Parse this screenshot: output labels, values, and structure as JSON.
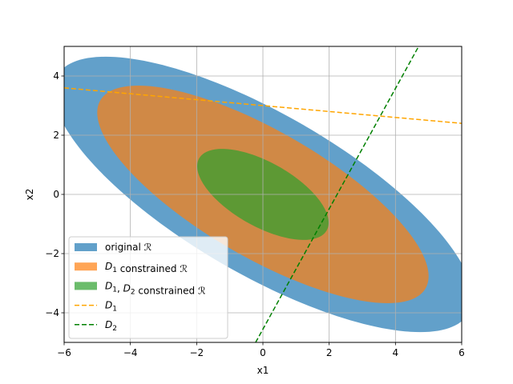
{
  "chart_data": {
    "type": "region-plot",
    "xlabel": "x1",
    "ylabel": "x2",
    "xlim": [
      -6,
      6
    ],
    "ylim": [
      -5,
      5
    ],
    "xticks": [
      -6,
      -4,
      -2,
      0,
      2,
      4,
      6
    ],
    "yticks": [
      -4,
      -2,
      0,
      2,
      4
    ],
    "xtick_labels": [
      "−6",
      "−4",
      "−2",
      "0",
      "2",
      "4",
      "6"
    ],
    "ytick_labels": [
      "−4",
      "−2",
      "0",
      "2",
      "4"
    ],
    "grid": true,
    "legend_position": "lower-left",
    "regions": [
      {
        "key": "original",
        "label_parts": [
          {
            "t": "original "
          },
          {
            "t": "ℛ",
            "style": "italic"
          }
        ],
        "color": "#1f77b4",
        "opacity": 0.7,
        "center": [
          0,
          0
        ],
        "semi_major": 7.4,
        "semi_minor": 2.63,
        "angle_deg": -33.7
      },
      {
        "key": "d1",
        "label_parts": [
          {
            "t": "D",
            "style": "italic"
          },
          {
            "t": "1",
            "style": "sub"
          },
          {
            "t": " constrained "
          },
          {
            "t": "ℛ",
            "style": "italic"
          }
        ],
        "color": "#ff7f0e",
        "opacity": 0.7,
        "center": [
          0,
          0
        ],
        "semi_major": 5.85,
        "semi_minor": 2.07,
        "angle_deg": -33.7
      },
      {
        "key": "d1d2",
        "label_parts": [
          {
            "t": "D",
            "style": "italic"
          },
          {
            "t": "1",
            "style": "sub"
          },
          {
            "t": ", "
          },
          {
            "t": "D",
            "style": "italic"
          },
          {
            "t": "2",
            "style": "sub"
          },
          {
            "t": " constrained "
          },
          {
            "t": "ℛ",
            "style": "italic"
          }
        ],
        "color": "#2ca02c",
        "opacity": 0.7,
        "center": [
          0,
          0
        ],
        "semi_major": 2.28,
        "semi_minor": 1.05,
        "angle_deg": -33.7
      }
    ],
    "lines": [
      {
        "key": "D1",
        "label_parts": [
          {
            "t": "D",
            "style": "italic"
          },
          {
            "t": "1",
            "style": "sub"
          }
        ],
        "color": "#ffa500",
        "dash": "6,3",
        "p1": [
          -6,
          3.6
        ],
        "p2": [
          6,
          2.4
        ]
      },
      {
        "key": "D2",
        "label_parts": [
          {
            "t": "D",
            "style": "italic"
          },
          {
            "t": "2",
            "style": "sub"
          }
        ],
        "color": "#008000",
        "dash": "6,3",
        "p1": [
          -0.22,
          -5
        ],
        "p2": [
          4.7,
          5
        ]
      }
    ]
  }
}
